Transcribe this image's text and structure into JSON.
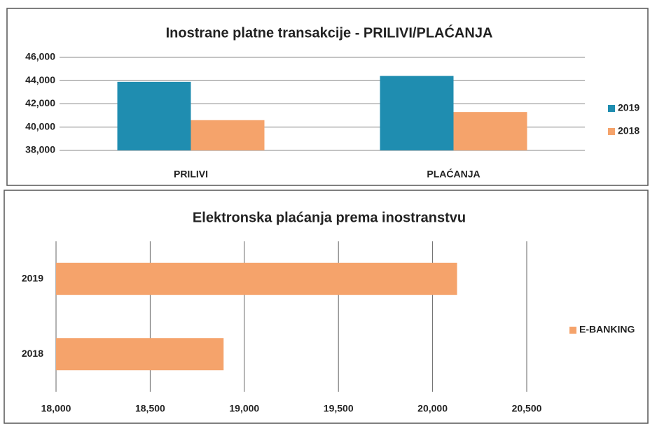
{
  "chart_data": [
    {
      "type": "bar",
      "title": "Inostrane platne transakcije - PRILIVI/PLAĆANJA",
      "categories": [
        "PRILIVI",
        "PLAĆANJA"
      ],
      "series": [
        {
          "name": "2019",
          "color": "#1f8db0",
          "values": [
            43900,
            44400
          ]
        },
        {
          "name": "2018",
          "color": "#f5a36b",
          "values": [
            40600,
            41300
          ]
        }
      ],
      "ylim": [
        38000,
        46000
      ],
      "yticks": [
        {
          "value": 38000,
          "label": "38,000"
        },
        {
          "value": 40000,
          "label": "40,000"
        },
        {
          "value": 42000,
          "label": "42,000"
        },
        {
          "value": 44000,
          "label": "44,000"
        },
        {
          "value": 46000,
          "label": "46,000"
        }
      ],
      "grid": true,
      "legend": "right"
    },
    {
      "type": "hbar",
      "title": "Elektronska plaćanja prema inostranstvu",
      "categories": [
        "2019",
        "2018"
      ],
      "series": [
        {
          "name": "E-BANKING",
          "color": "#f5a36b",
          "values": [
            20130,
            18890
          ]
        }
      ],
      "xlim": [
        18000,
        20500
      ],
      "xticks": [
        {
          "value": 18000,
          "label": "18,000"
        },
        {
          "value": 18500,
          "label": "18,500"
        },
        {
          "value": 19000,
          "label": "19,000"
        },
        {
          "value": 19500,
          "label": "19,500"
        },
        {
          "value": 20000,
          "label": "20,000"
        },
        {
          "value": 20500,
          "label": "20,500"
        }
      ],
      "grid": true,
      "legend": "right"
    }
  ]
}
